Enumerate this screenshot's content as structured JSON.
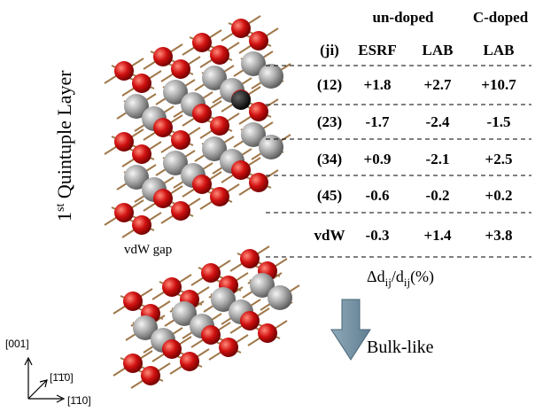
{
  "side_label": {
    "main": "1",
    "sup": "st",
    "rest": " Quintuple Layer"
  },
  "gap_label": "vdW gap",
  "bulk_label": "Bulk-like",
  "axes": [
    "[001]",
    "[1̄1̄0]",
    "[1̄10]"
  ],
  "table": {
    "group_headers": [
      "un-doped",
      "C-doped"
    ],
    "columns": [
      "(ji)",
      "ESRF",
      "LAB",
      "LAB"
    ],
    "rows": [
      [
        "(12)",
        "+1.8",
        "+2.7",
        "+10.7"
      ],
      [
        "(23)",
        "-1.7",
        "-2.4",
        "-1.5"
      ],
      [
        "(34)",
        "+0.9",
        "-2.1",
        "+2.5"
      ],
      [
        "(45)",
        "-0.6",
        "-0.2",
        "+0.2"
      ],
      [
        "vdW",
        "-0.3",
        "+1.4",
        "+3.8"
      ]
    ],
    "caption": {
      "a": "Δd",
      "sub1": "ij",
      "b": "/d",
      "sub2": "ij",
      "c": "(%)"
    }
  }
}
